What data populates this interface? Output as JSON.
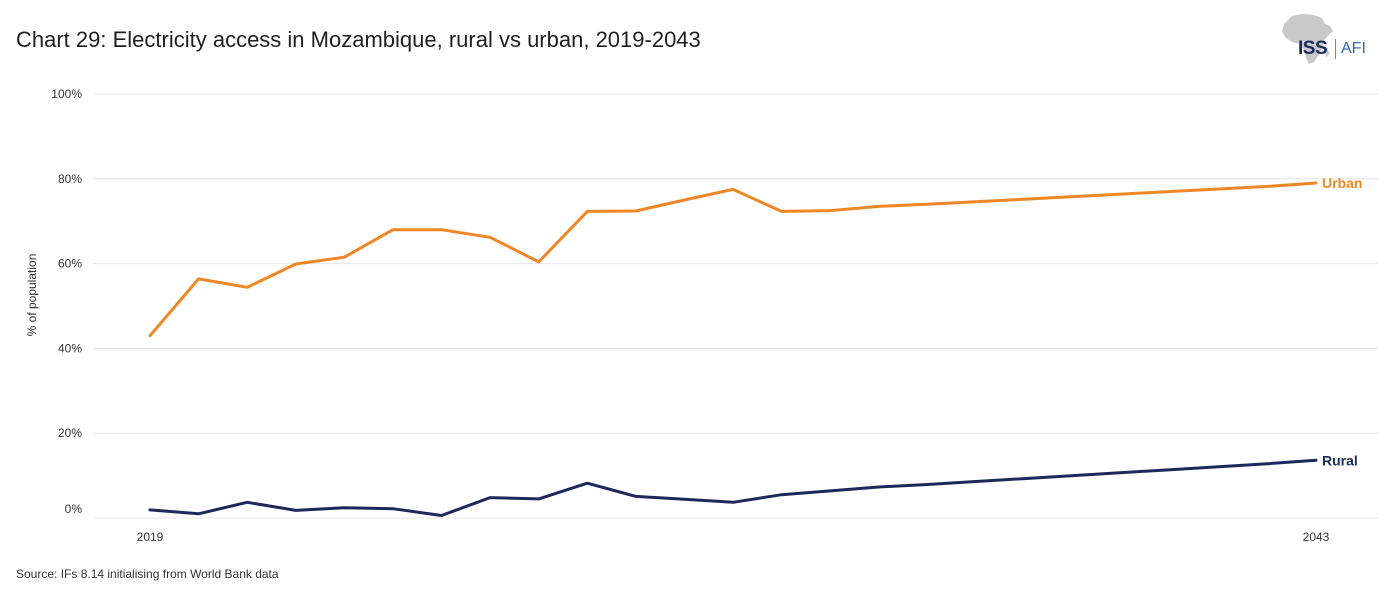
{
  "title": "Chart 29: Electricity access in Mozambique, rural vs urban, 2019-2043",
  "source": "Source: IFs 8.14 initialising from World Bank data",
  "logo": {
    "primary": "ISS",
    "secondary": "AFI"
  },
  "chart_data": {
    "type": "line",
    "ylabel": "% of population",
    "ylim": [
      0,
      100
    ],
    "yticks": [
      {
        "value": 0,
        "label": "0%"
      },
      {
        "value": 20,
        "label": "20%"
      },
      {
        "value": 40,
        "label": "40%"
      },
      {
        "value": 60,
        "label": "60%"
      },
      {
        "value": 80,
        "label": "80%"
      },
      {
        "value": 100,
        "label": "100%"
      }
    ],
    "xlim": [
      2019,
      2043
    ],
    "xticks": [
      {
        "value": 2019,
        "label": "2019"
      },
      {
        "value": 2043,
        "label": "2043"
      }
    ],
    "grid": true,
    "x": [
      2019,
      2020,
      2021,
      2022,
      2023,
      2024,
      2025,
      2026,
      2027,
      2028,
      2029,
      2030,
      2031,
      2032,
      2033,
      2034,
      2035,
      2036,
      2037,
      2038,
      2039,
      2040,
      2041,
      2042,
      2043
    ],
    "series": [
      {
        "name": "Urban",
        "color": "#ef8727",
        "values": [
          43.0,
          56.4,
          54.4,
          59.9,
          61.5,
          68.0,
          68.0,
          66.2,
          60.4,
          72.3,
          72.4,
          75.0,
          77.5,
          72.3,
          72.5,
          73.5,
          74.0,
          74.6,
          75.2,
          75.8,
          76.4,
          77.0,
          77.6,
          78.2,
          79.0
        ]
      },
      {
        "name": "Rural",
        "color": "#1b2a5a",
        "values": [
          1.9,
          1.0,
          3.7,
          1.8,
          2.4,
          2.2,
          0.6,
          4.8,
          4.5,
          8.2,
          5.1,
          4.4,
          3.7,
          5.5,
          6.4,
          7.3,
          7.9,
          8.6,
          9.3,
          10.0,
          10.7,
          11.4,
          12.1,
          12.8,
          13.6
        ]
      }
    ]
  }
}
